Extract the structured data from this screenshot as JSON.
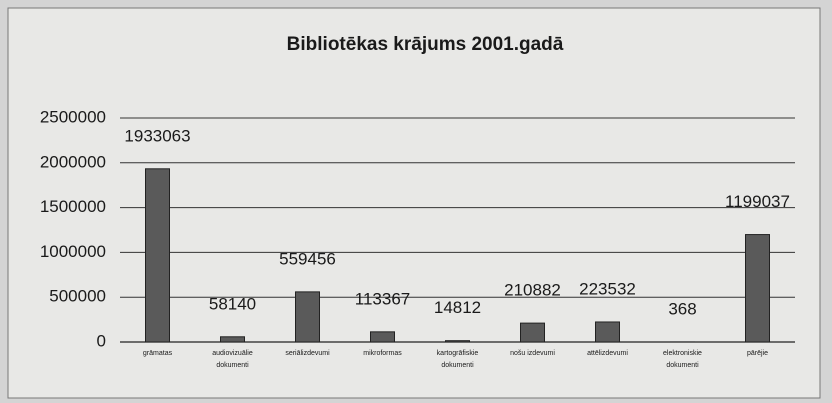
{
  "chart_data": {
    "type": "bar",
    "title": "Bibliotēkas krājums 2001.gadā",
    "categories": [
      "grāmatas",
      "audiovizuālie dokumenti",
      "seriālizdevumi",
      "mikroformas",
      "kartogrāfiskie dokumenti",
      "nošu izdevumi",
      "attēlizdevumi",
      "elektroniskie dokumenti",
      "pārējie"
    ],
    "values": [
      1933063,
      58140,
      559456,
      113367,
      14812,
      210882,
      223532,
      368,
      1199037
    ],
    "color": "#5a5a5a",
    "ylim": [
      0,
      2500000
    ],
    "yticks": [
      0,
      500000,
      1000000,
      1500000,
      2000000,
      2500000
    ],
    "grid": true
  }
}
